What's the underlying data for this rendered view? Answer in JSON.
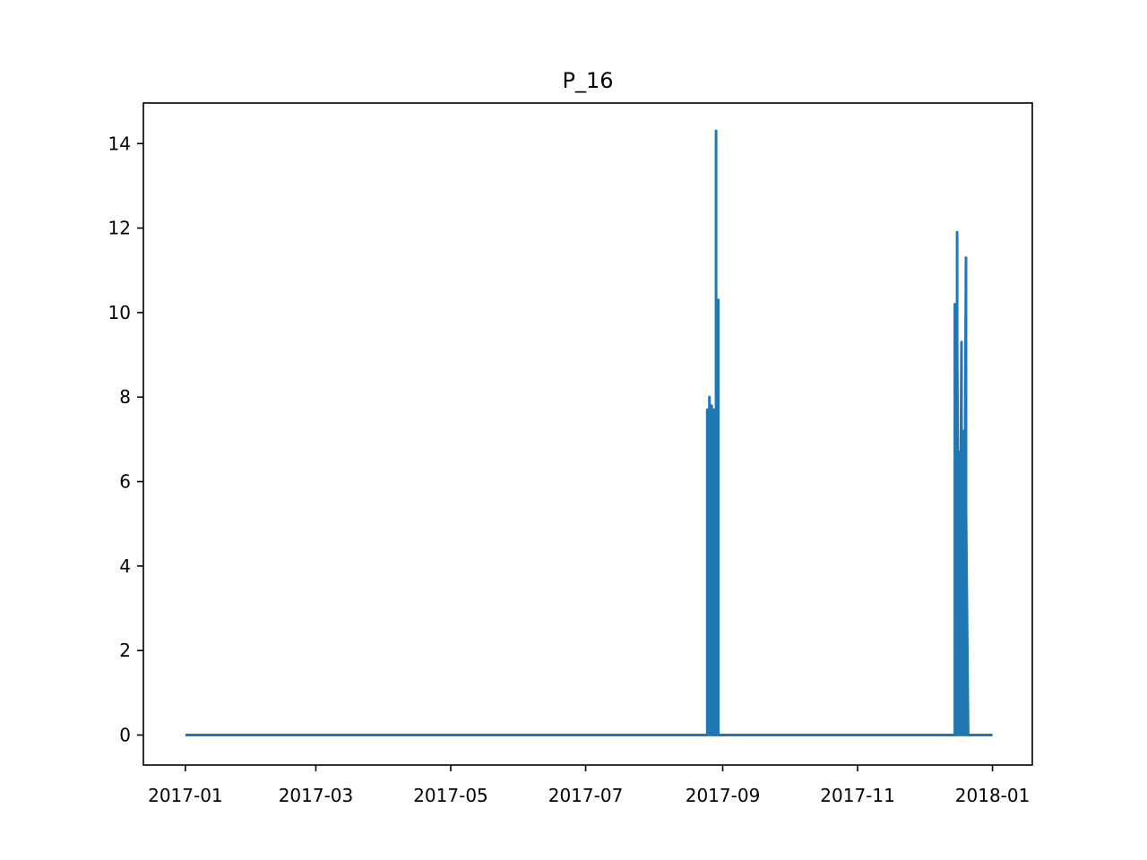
{
  "chart_data": {
    "type": "line",
    "title": "P_16",
    "xlabel": "",
    "ylabel": "",
    "x_axis_type": "date",
    "xlim": [
      "2016-12-13",
      "2018-01-19"
    ],
    "ylim": [
      -0.71,
      14.96
    ],
    "x_ticks": [
      "2017-01-01",
      "2017-03-01",
      "2017-05-01",
      "2017-07-01",
      "2017-09-01",
      "2017-11-01",
      "2018-01-01"
    ],
    "x_tick_labels": [
      "2017-01",
      "2017-03",
      "2017-05",
      "2017-07",
      "2017-09",
      "2017-11",
      "2018-01"
    ],
    "y_ticks": [
      0,
      2,
      4,
      6,
      8,
      10,
      12,
      14
    ],
    "y_tick_labels": [
      "0",
      "2",
      "4",
      "6",
      "8",
      "10",
      "12",
      "14"
    ],
    "grid": false,
    "legend": false,
    "colors": {
      "line": "#1f77b4",
      "axes": "#000000",
      "background": "#ffffff"
    },
    "series": [
      {
        "x": [
          "2017-01-01",
          "2017-08-25",
          "2017-08-25",
          "2017-08-25",
          "2017-08-25",
          "2017-08-26",
          "2017-08-26",
          "2017-08-26",
          "2017-08-26",
          "2017-08-27",
          "2017-08-27",
          "2017-08-27",
          "2017-08-27",
          "2017-08-28",
          "2017-08-28",
          "2017-08-28",
          "2017-08-29",
          "2017-08-29",
          "2017-08-29",
          "2017-08-29",
          "2017-08-30",
          "2017-08-30",
          "2017-08-30",
          "2017-08-30",
          "2017-12-15",
          "2017-12-15",
          "2017-12-15",
          "2017-12-15",
          "2017-12-16",
          "2017-12-16",
          "2017-12-16",
          "2017-12-16",
          "2017-12-17",
          "2017-12-17",
          "2017-12-17",
          "2017-12-18",
          "2017-12-18",
          "2017-12-18",
          "2017-12-19",
          "2017-12-19",
          "2017-12-19",
          "2017-12-20",
          "2017-12-20",
          "2017-12-20",
          "2017-12-21",
          "2017-12-21",
          "2017-12-21",
          "2018-01-01"
        ],
        "y": [
          0,
          0,
          7.0,
          0,
          7.7,
          0,
          7.9,
          0,
          8.0,
          0,
          7.8,
          0,
          6.5,
          0,
          7.7,
          0,
          0,
          14.3,
          0,
          0,
          10.3,
          0,
          0,
          0,
          0,
          7.2,
          0,
          10.2,
          0,
          11.9,
          0,
          9.3,
          0,
          6.7,
          0,
          9.3,
          4.4,
          0,
          7.2,
          2.5,
          0,
          11.3,
          0,
          5.3,
          0,
          0,
          0,
          0
        ]
      }
    ]
  }
}
